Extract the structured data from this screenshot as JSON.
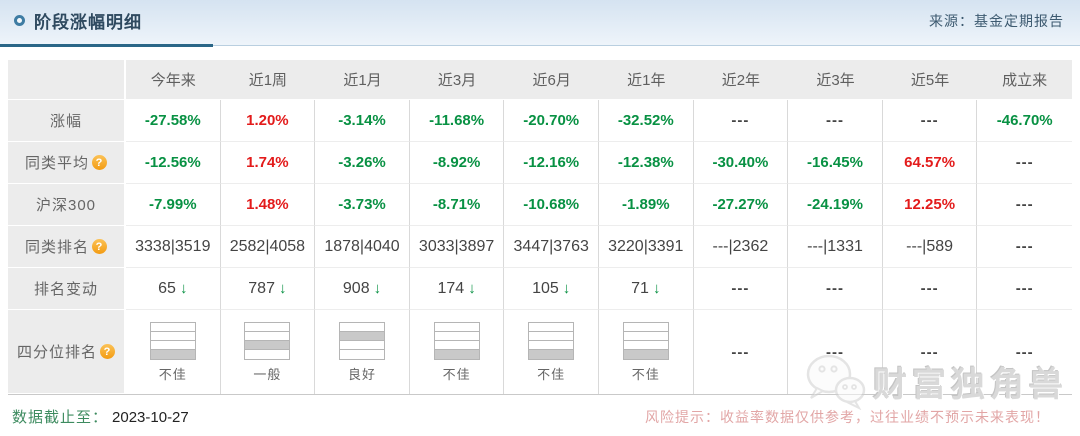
{
  "header": {
    "title": "阶段涨幅明细",
    "source": "来源：基金定期报告"
  },
  "table": {
    "corner": "",
    "columns": [
      "今年来",
      "近1周",
      "近1月",
      "近3月",
      "近6月",
      "近1年",
      "近2年",
      "近3年",
      "近5年",
      "成立来"
    ],
    "rows": [
      {
        "label": "涨幅",
        "help": false,
        "cells": [
          {
            "t": "-27.58%",
            "c": "green"
          },
          {
            "t": "1.20%",
            "c": "red"
          },
          {
            "t": "-3.14%",
            "c": "green"
          },
          {
            "t": "-11.68%",
            "c": "green"
          },
          {
            "t": "-20.70%",
            "c": "green"
          },
          {
            "t": "-32.52%",
            "c": "green"
          },
          {
            "t": "---",
            "c": "dash"
          },
          {
            "t": "---",
            "c": "dash"
          },
          {
            "t": "---",
            "c": "dash"
          },
          {
            "t": "-46.70%",
            "c": "green"
          }
        ]
      },
      {
        "label": "同类平均",
        "help": true,
        "cells": [
          {
            "t": "-12.56%",
            "c": "green"
          },
          {
            "t": "1.74%",
            "c": "red"
          },
          {
            "t": "-3.26%",
            "c": "green"
          },
          {
            "t": "-8.92%",
            "c": "green"
          },
          {
            "t": "-12.16%",
            "c": "green"
          },
          {
            "t": "-12.38%",
            "c": "green"
          },
          {
            "t": "-30.40%",
            "c": "green"
          },
          {
            "t": "-16.45%",
            "c": "green"
          },
          {
            "t": "64.57%",
            "c": "red"
          },
          {
            "t": "---",
            "c": "dash"
          }
        ]
      },
      {
        "label": "沪深300",
        "help": false,
        "cells": [
          {
            "t": "-7.99%",
            "c": "green"
          },
          {
            "t": "1.48%",
            "c": "red"
          },
          {
            "t": "-3.73%",
            "c": "green"
          },
          {
            "t": "-8.71%",
            "c": "green"
          },
          {
            "t": "-10.68%",
            "c": "green"
          },
          {
            "t": "-1.89%",
            "c": "green"
          },
          {
            "t": "-27.27%",
            "c": "green"
          },
          {
            "t": "-24.19%",
            "c": "green"
          },
          {
            "t": "12.25%",
            "c": "red"
          },
          {
            "t": "---",
            "c": "dash"
          }
        ]
      },
      {
        "label": "同类排名",
        "help": true,
        "cells": [
          {
            "t": "3338|3519",
            "c": "rank"
          },
          {
            "t": "2582|4058",
            "c": "rank"
          },
          {
            "t": "1878|4040",
            "c": "rank"
          },
          {
            "t": "3033|3897",
            "c": "rank"
          },
          {
            "t": "3447|3763",
            "c": "rank"
          },
          {
            "t": "3220|3391",
            "c": "rank"
          },
          {
            "t": "---|2362",
            "c": "rank"
          },
          {
            "t": "---|1331",
            "c": "rank"
          },
          {
            "t": "---|589",
            "c": "rank"
          },
          {
            "t": "---",
            "c": "dash"
          }
        ]
      },
      {
        "label": "排名变动",
        "help": false,
        "cells": [
          {
            "t": "65",
            "arrow": true
          },
          {
            "t": "787",
            "arrow": true
          },
          {
            "t": "908",
            "arrow": true
          },
          {
            "t": "174",
            "arrow": true
          },
          {
            "t": "105",
            "arrow": true
          },
          {
            "t": "71",
            "arrow": true
          },
          {
            "t": "---",
            "c": "dash"
          },
          {
            "t": "---",
            "c": "dash"
          },
          {
            "t": "---",
            "c": "dash"
          },
          {
            "t": "---",
            "c": "dash"
          }
        ]
      },
      {
        "label": "四分位排名",
        "help": true,
        "tall": true,
        "cells": [
          {
            "q": 4,
            "t": "不佳"
          },
          {
            "q": 3,
            "t": "一般"
          },
          {
            "q": 2,
            "t": "良好"
          },
          {
            "q": 4,
            "t": "不佳"
          },
          {
            "q": 4,
            "t": "不佳"
          },
          {
            "q": 4,
            "t": "不佳"
          },
          {
            "t": "---",
            "c": "dash"
          },
          {
            "t": "---",
            "c": "dash"
          },
          {
            "t": "---",
            "c": "dash"
          },
          {
            "t": "---",
            "c": "dash"
          }
        ]
      }
    ]
  },
  "footer": {
    "cutoff_label": "数据截止至：",
    "cutoff_date": "2023-10-27",
    "risk_note": "风险提示：收益率数据仅供参考，过往业绩不预示未来表现！"
  },
  "watermark": {
    "text": "财富独角兽"
  },
  "icons": {
    "down_arrow": "↓",
    "help": "?"
  },
  "colors": {
    "green": "#089143",
    "red": "#e31b1b",
    "dash": "#444444",
    "accent_underline": "#2a6687",
    "header_bg_top": "#d5e3f1",
    "header_bg_bottom": "#eef4fa"
  }
}
